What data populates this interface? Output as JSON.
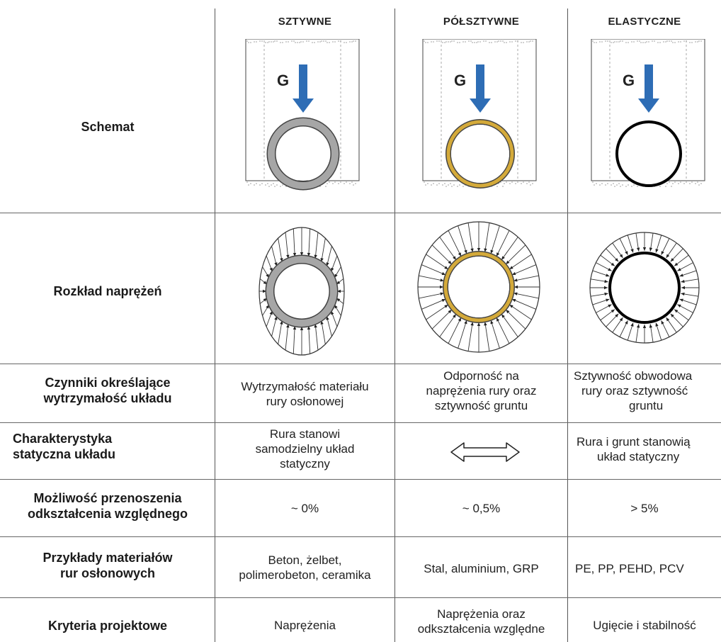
{
  "columns": [
    {
      "header": "SZTYWNE"
    },
    {
      "header": "PÓŁSZTYWNE"
    },
    {
      "header": "ELASTYCZNE"
    }
  ],
  "schema_label": "G",
  "rows": {
    "schemat": {
      "label": "Schemat"
    },
    "rozklad": {
      "label": "Rozkład naprężeń"
    },
    "czynniki": {
      "label_lines": [
        "Czynniki określające",
        "wytrzymałość układu"
      ],
      "values": [
        [
          "Wytrzymałość materiału",
          "rury osłonowej"
        ],
        [
          "Odporność na",
          "naprężenia rury oraz",
          "sztywność gruntu"
        ],
        [
          "Sztywność obwodowa",
          "rury oraz sztywność",
          "gruntu"
        ]
      ]
    },
    "charakterystyka": {
      "label_lines": [
        "Charakterystyka",
        "statyczna układu"
      ],
      "values": [
        [
          "Rura stanowi",
          "samodzielny układ",
          "statyczny"
        ],
        [],
        [
          "Rura i grunt stanowią",
          "układ statyczny"
        ]
      ]
    },
    "mozliwosc": {
      "label_lines": [
        "Możliwość przenoszenia",
        "odkształcenia względnego"
      ],
      "values": [
        [
          "~ 0%"
        ],
        [
          "~ 0,5%"
        ],
        [
          "> 5%"
        ]
      ]
    },
    "przyklady": {
      "label_lines": [
        "Przykłady materiałów",
        "rur osłonowych"
      ],
      "values": [
        [
          "Beton, żelbet,",
          "polimerobeton, ceramika"
        ],
        [
          "Stal, aluminium, GRP"
        ],
        [
          "PE, PP, PEHD, PCV"
        ]
      ]
    },
    "kryteria": {
      "label_lines": [
        "Kryteria projektowe"
      ],
      "values": [
        [
          "Naprężenia"
        ],
        [
          "Naprężenia oraz",
          "odkształcenia względne"
        ],
        [
          "Ugięcie i stabilność"
        ]
      ]
    }
  },
  "colors": {
    "arrow": "#2e6db5",
    "pipe_rigid": "#a6a6a6",
    "pipe_semi": "#d4aa3a",
    "pipe_flexible": "#000000",
    "grid": "#666666"
  }
}
